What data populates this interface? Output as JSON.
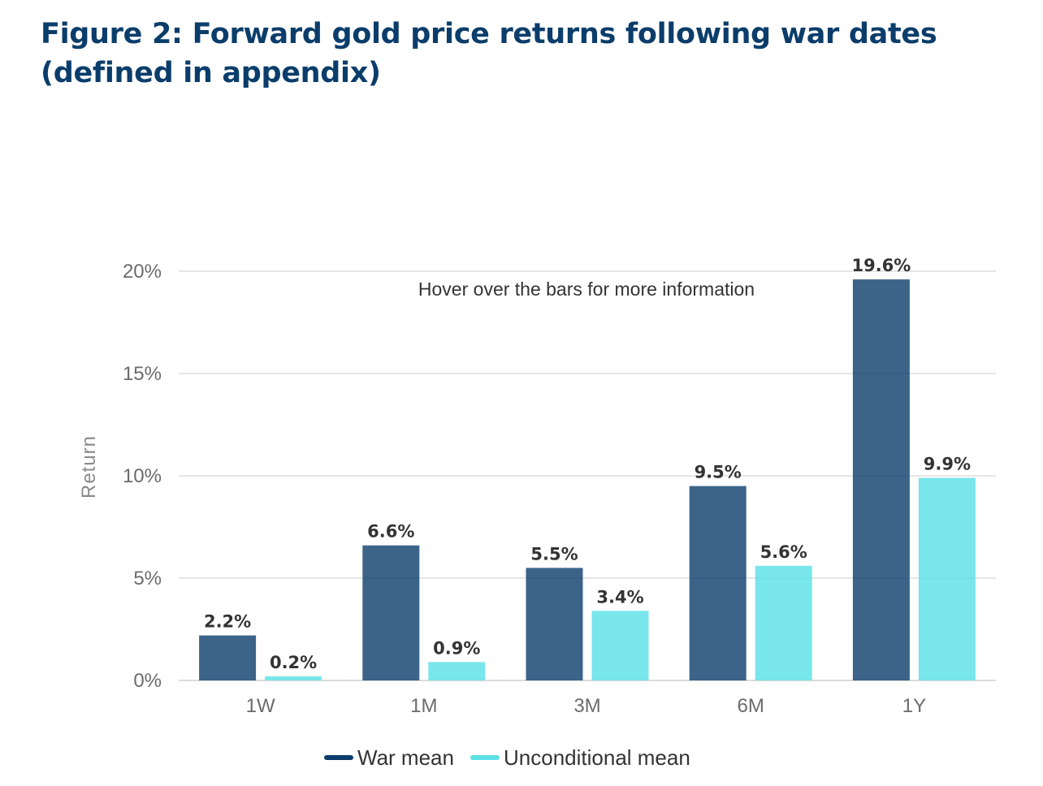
{
  "title": "Figure 2: Forward gold price returns following war dates (defined in appendix)",
  "chart_data": {
    "type": "bar",
    "categories": [
      "1W",
      "1M",
      "3M",
      "6M",
      "1Y"
    ],
    "series": [
      {
        "name": "War mean",
        "values": [
          2.2,
          6.6,
          5.5,
          9.5,
          19.6
        ],
        "labels": [
          "2.2%",
          "6.6%",
          "5.5%",
          "9.5%",
          "19.6%"
        ],
        "color": "#0b3d6b"
      },
      {
        "name": "Unconditional mean",
        "values": [
          0.2,
          0.9,
          3.4,
          5.6,
          9.9
        ],
        "labels": [
          "0.2%",
          "0.9%",
          "3.4%",
          "5.6%",
          "9.9%"
        ],
        "color": "#5ce1e6"
      }
    ],
    "xlabel": "",
    "ylabel": "Return",
    "ylim": [
      0,
      20
    ],
    "yticks": [
      0,
      5,
      10,
      15,
      20
    ],
    "ytick_labels": [
      "0%",
      "5%",
      "10%",
      "15%",
      "20%"
    ],
    "annotation": "Hover over the bars for more information",
    "grid": true,
    "legend_placement": "bottom-center"
  }
}
